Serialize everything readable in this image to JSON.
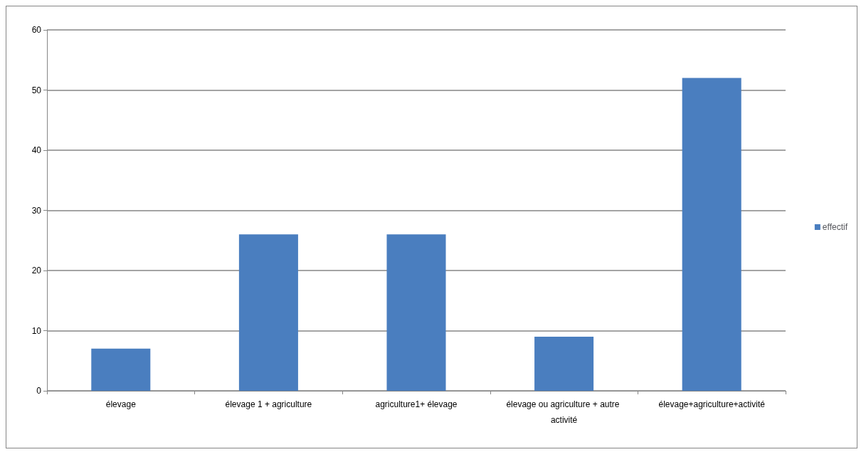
{
  "chart_data": {
    "type": "bar",
    "categories": [
      "élevage",
      "élevage 1 + agriculture",
      "agriculture1+ élevage",
      "élevage ou agriculture + autre activité",
      "élevage+agriculture+activité"
    ],
    "series": [
      {
        "name": "effectif",
        "color": "#4a7ebf",
        "values": [
          7,
          26,
          26,
          9,
          52
        ]
      }
    ],
    "ylim": [
      0,
      60
    ],
    "yticks": [
      0,
      10,
      20,
      30,
      40,
      50,
      60
    ],
    "grid": "y",
    "legend": "right"
  }
}
